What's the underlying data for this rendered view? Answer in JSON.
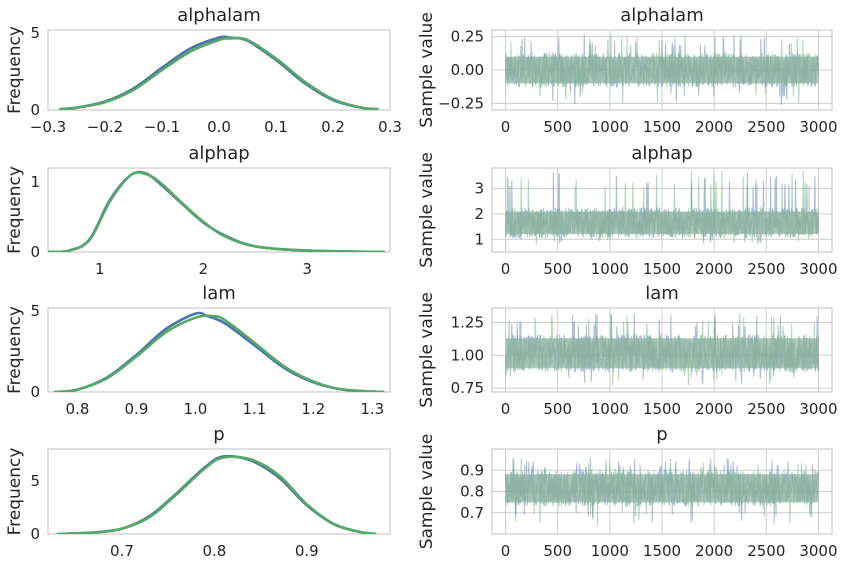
{
  "colors": {
    "chain1": "#4c72b0",
    "chain2": "#55a868",
    "trace_overlap": "#8fb3a3",
    "grid": "#cccccc",
    "axes_edge": "#bfbfbf",
    "text": "#262626"
  },
  "chart_data": [
    {
      "type": "line",
      "title": "alphalam",
      "xlabel": "",
      "ylabel": "Frequency",
      "xlim": [
        -0.3,
        0.3
      ],
      "ylim": [
        0,
        5.2
      ],
      "x_ticks": [
        "−0.3",
        "−0.2",
        "−0.1",
        "0.0",
        "0.1",
        "0.2",
        "0.3"
      ],
      "y_ticks": [
        "0",
        "5"
      ],
      "grid": false,
      "series": [
        {
          "x": [
            -0.28,
            -0.25,
            -0.2,
            -0.15,
            -0.1,
            -0.05,
            0.0,
            0.02,
            0.05,
            0.1,
            0.15,
            0.2,
            0.25,
            0.28
          ],
          "y": [
            0.05,
            0.15,
            0.55,
            1.4,
            2.75,
            4.0,
            4.7,
            4.7,
            4.5,
            3.25,
            1.75,
            0.65,
            0.15,
            0.05
          ]
        },
        {
          "x": [
            -0.28,
            -0.25,
            -0.2,
            -0.15,
            -0.1,
            -0.05,
            0.0,
            0.02,
            0.05,
            0.1,
            0.15,
            0.2,
            0.25,
            0.28
          ],
          "y": [
            0.05,
            0.15,
            0.5,
            1.3,
            2.6,
            3.8,
            4.55,
            4.65,
            4.55,
            3.35,
            1.85,
            0.7,
            0.15,
            0.05
          ]
        }
      ]
    },
    {
      "type": "line",
      "title": "alphalam",
      "xlabel": "",
      "ylabel": "Sample value",
      "xlim": [
        -130,
        3130
      ],
      "ylim": [
        -0.3,
        0.3
      ],
      "x_ticks": [
        "0",
        "500",
        "1000",
        "1500",
        "2000",
        "2500",
        "3000"
      ],
      "y_ticks": [
        "−0.25",
        "0.00",
        "0.25"
      ],
      "grid": true,
      "trace_band": {
        "center": 0.0,
        "low": -0.13,
        "high": 0.13,
        "spike_low": -0.27,
        "spike_high": 0.28
      }
    },
    {
      "type": "line",
      "title": "alphap",
      "xlabel": "",
      "ylabel": "Frequency",
      "xlim": [
        0.5,
        3.8
      ],
      "ylim": [
        0,
        1.2
      ],
      "x_ticks": [
        "1",
        "2",
        "3"
      ],
      "y_ticks": [
        "0",
        "1"
      ],
      "grid": false,
      "series": [
        {
          "x": [
            0.5,
            0.7,
            0.9,
            1.1,
            1.3,
            1.45,
            1.6,
            1.8,
            2.0,
            2.2,
            2.5,
            3.0,
            3.75
          ],
          "y": [
            0.0,
            0.02,
            0.18,
            0.75,
            1.1,
            1.12,
            0.95,
            0.68,
            0.42,
            0.24,
            0.08,
            0.02,
            0.0
          ]
        },
        {
          "x": [
            0.5,
            0.7,
            0.9,
            1.1,
            1.3,
            1.45,
            1.6,
            1.8,
            2.0,
            2.2,
            2.5,
            3.0,
            3.75
          ],
          "y": [
            0.0,
            0.02,
            0.17,
            0.73,
            1.1,
            1.11,
            0.97,
            0.69,
            0.43,
            0.23,
            0.08,
            0.02,
            0.0
          ]
        }
      ]
    },
    {
      "type": "line",
      "title": "alphap",
      "xlabel": "",
      "ylabel": "Sample value",
      "xlim": [
        -130,
        3130
      ],
      "ylim": [
        0.5,
        3.8
      ],
      "x_ticks": [
        "0",
        "500",
        "1000",
        "1500",
        "2000",
        "2500",
        "3000"
      ],
      "y_ticks": [
        "1",
        "2",
        "3"
      ],
      "grid": true,
      "trace_band": {
        "center": 1.6,
        "low": 1.05,
        "high": 2.25,
        "spike_low": 0.8,
        "spike_high": 3.7
      }
    },
    {
      "type": "line",
      "title": "lam",
      "xlabel": "",
      "ylabel": "Frequency",
      "xlim": [
        0.75,
        1.33
      ],
      "ylim": [
        0,
        5.2
      ],
      "x_ticks": [
        "0.8",
        "0.9",
        "1.0",
        "1.1",
        "1.2",
        "1.3"
      ],
      "y_ticks": [
        "0",
        "5"
      ],
      "grid": false,
      "series": [
        {
          "x": [
            0.76,
            0.8,
            0.85,
            0.9,
            0.95,
            1.0,
            1.02,
            1.05,
            1.1,
            1.15,
            1.2,
            1.25,
            1.32
          ],
          "y": [
            0.0,
            0.15,
            0.9,
            2.3,
            3.9,
            4.85,
            4.7,
            4.25,
            2.9,
            1.5,
            0.6,
            0.15,
            0.0
          ]
        },
        {
          "x": [
            0.76,
            0.8,
            0.85,
            0.9,
            0.95,
            1.0,
            1.03,
            1.05,
            1.1,
            1.15,
            1.2,
            1.25,
            1.32
          ],
          "y": [
            0.0,
            0.15,
            0.85,
            2.2,
            3.7,
            4.6,
            4.7,
            4.45,
            3.05,
            1.6,
            0.65,
            0.15,
            0.0
          ]
        }
      ]
    },
    {
      "type": "line",
      "title": "lam",
      "xlabel": "",
      "ylabel": "Sample value",
      "xlim": [
        -130,
        3130
      ],
      "ylim": [
        0.72,
        1.36
      ],
      "x_ticks": [
        "0",
        "500",
        "1000",
        "1500",
        "2000",
        "2500",
        "3000"
      ],
      "y_ticks": [
        "0.75",
        "1.00",
        "1.25"
      ],
      "grid": true,
      "trace_band": {
        "center": 1.0,
        "low": 0.87,
        "high": 1.16,
        "spike_low": 0.77,
        "spike_high": 1.32
      }
    },
    {
      "type": "line",
      "title": "p",
      "xlabel": "",
      "ylabel": "Frequency",
      "xlim": [
        0.62,
        0.99
      ],
      "ylim": [
        0,
        8
      ],
      "x_ticks": [
        "0.7",
        "0.8",
        "0.9"
      ],
      "y_ticks": [
        "0",
        "5"
      ],
      "grid": false,
      "series": [
        {
          "x": [
            0.63,
            0.67,
            0.7,
            0.73,
            0.76,
            0.79,
            0.81,
            0.84,
            0.87,
            0.9,
            0.93,
            0.96,
            0.975
          ],
          "y": [
            0.0,
            0.15,
            0.5,
            1.7,
            3.9,
            6.3,
            7.3,
            6.9,
            5.3,
            2.7,
            0.9,
            0.15,
            0.0
          ]
        },
        {
          "x": [
            0.63,
            0.67,
            0.7,
            0.73,
            0.76,
            0.79,
            0.81,
            0.84,
            0.87,
            0.9,
            0.93,
            0.96,
            0.975
          ],
          "y": [
            0.0,
            0.15,
            0.5,
            1.6,
            3.8,
            6.2,
            7.2,
            7.0,
            5.5,
            2.8,
            0.9,
            0.15,
            0.0
          ]
        }
      ]
    },
    {
      "type": "line",
      "title": "p",
      "xlabel": "",
      "ylabel": "Sample value",
      "xlim": [
        -130,
        3130
      ],
      "ylim": [
        0.6,
        1.0
      ],
      "x_ticks": [
        "0",
        "500",
        "1000",
        "1500",
        "2000",
        "2500",
        "3000"
      ],
      "y_ticks": [
        "0.7",
        "0.8",
        "0.9"
      ],
      "grid": true,
      "trace_band": {
        "center": 0.815,
        "low": 0.73,
        "high": 0.9,
        "spike_low": 0.64,
        "spike_high": 0.96
      }
    }
  ]
}
